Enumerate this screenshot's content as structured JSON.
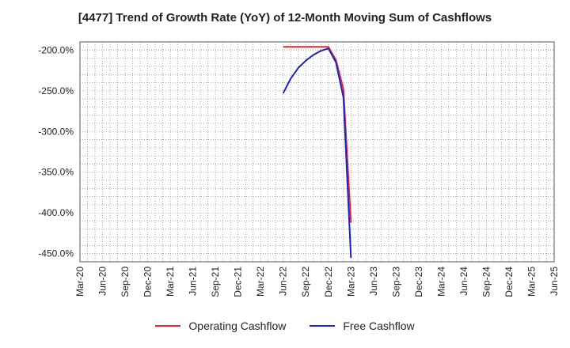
{
  "chart_data": {
    "type": "line",
    "title": "[4477]  Trend of Growth Rate (YoY) of 12-Month Moving Sum of Cashflows",
    "x_tick_labels": [
      "Mar-20",
      "Jun-20",
      "Sep-20",
      "Dec-20",
      "Mar-21",
      "Jun-21",
      "Sep-21",
      "Dec-21",
      "Mar-22",
      "Jun-22",
      "Sep-22",
      "Dec-22",
      "Mar-23",
      "Jun-23",
      "Sep-23",
      "Dec-23",
      "Mar-24",
      "Jun-24",
      "Sep-24",
      "Dec-24",
      "Mar-25",
      "Jun-25"
    ],
    "y_tick_values": [
      -200,
      -250,
      -300,
      -350,
      -400,
      -450
    ],
    "y_tick_labels": [
      "-200.0%",
      "-250.0%",
      "-300.0%",
      "-350.0%",
      "-400.0%",
      "-450.0%"
    ],
    "ylim": [
      -460,
      -190
    ],
    "grid": true,
    "legend_position": "bottom",
    "series": [
      {
        "name": "Operating Cashflow",
        "color": "#e8262a",
        "x": [
          "Jun-22",
          "Jul-22",
          "Aug-22",
          "Sep-22",
          "Oct-22",
          "Nov-22",
          "Dec-22",
          "Jan-23",
          "Feb-23",
          "Mar-23"
        ],
        "values": [
          -196,
          -196,
          -196,
          -196,
          -196,
          -196,
          -196,
          -212,
          -248,
          -412
        ]
      },
      {
        "name": "Free Cashflow",
        "color": "#1b22c8",
        "x": [
          "Jun-22",
          "Jul-22",
          "Aug-22",
          "Sep-22",
          "Oct-22",
          "Nov-22",
          "Dec-22",
          "Jan-23",
          "Feb-23",
          "Mar-23"
        ],
        "values": [
          -253,
          -235,
          -222,
          -213,
          -206,
          -201,
          -198,
          -215,
          -258,
          -455
        ]
      }
    ]
  }
}
